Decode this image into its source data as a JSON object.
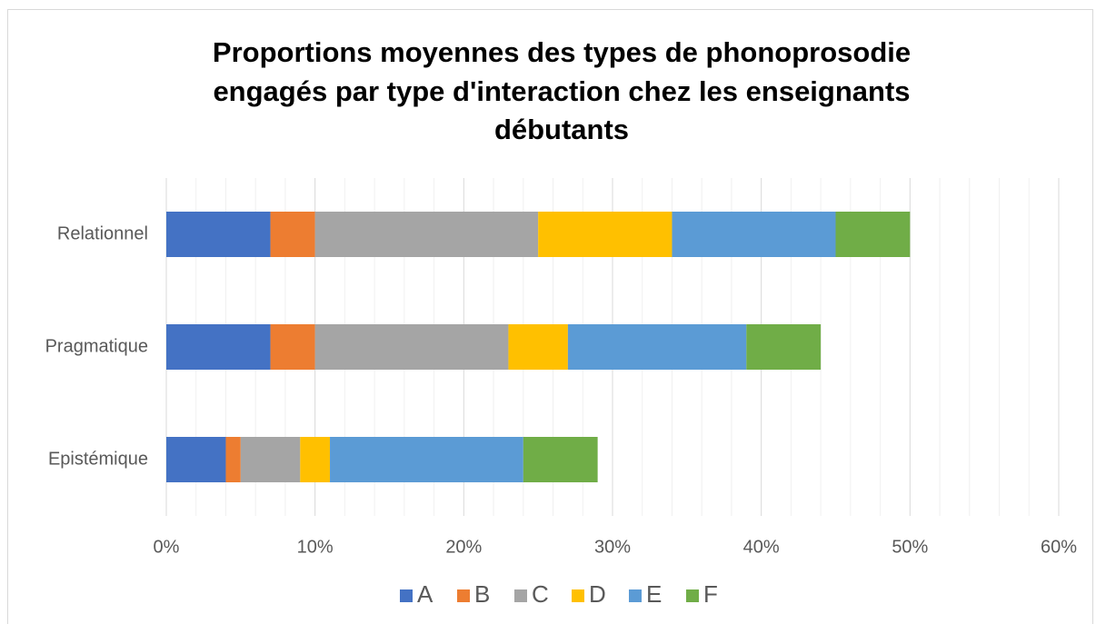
{
  "chart_data": {
    "type": "stacked_barh",
    "title": [
      "Proportions moyennes des types de phonoprosodie",
      "engagés par type d'interaction chez les enseignants",
      "débutants"
    ],
    "categories": [
      "Relationnel",
      "Pragmatique",
      "Epistémique"
    ],
    "series": [
      {
        "name": "A",
        "color": "#4472c4",
        "values": [
          7,
          7,
          4
        ]
      },
      {
        "name": "B",
        "color": "#ed7d31",
        "values": [
          3,
          3,
          1
        ]
      },
      {
        "name": "C",
        "color": "#a5a5a5",
        "values": [
          15,
          13,
          4
        ]
      },
      {
        "name": "D",
        "color": "#ffc000",
        "values": [
          9,
          4,
          2
        ]
      },
      {
        "name": "E",
        "color": "#5b9bd5",
        "values": [
          11,
          12,
          13
        ]
      },
      {
        "name": "F",
        "color": "#70ad47",
        "values": [
          5,
          5,
          5
        ]
      }
    ],
    "xlim": [
      0,
      60
    ],
    "xticks": [
      {
        "value": 0,
        "label": "0%"
      },
      {
        "value": 10,
        "label": "10%"
      },
      {
        "value": 20,
        "label": "20%"
      },
      {
        "value": 30,
        "label": "30%"
      },
      {
        "value": 40,
        "label": "40%"
      },
      {
        "value": 50,
        "label": "50%"
      },
      {
        "value": 60,
        "label": "60%"
      }
    ],
    "grid": true,
    "minor_grid": true,
    "legend": "bottom"
  }
}
